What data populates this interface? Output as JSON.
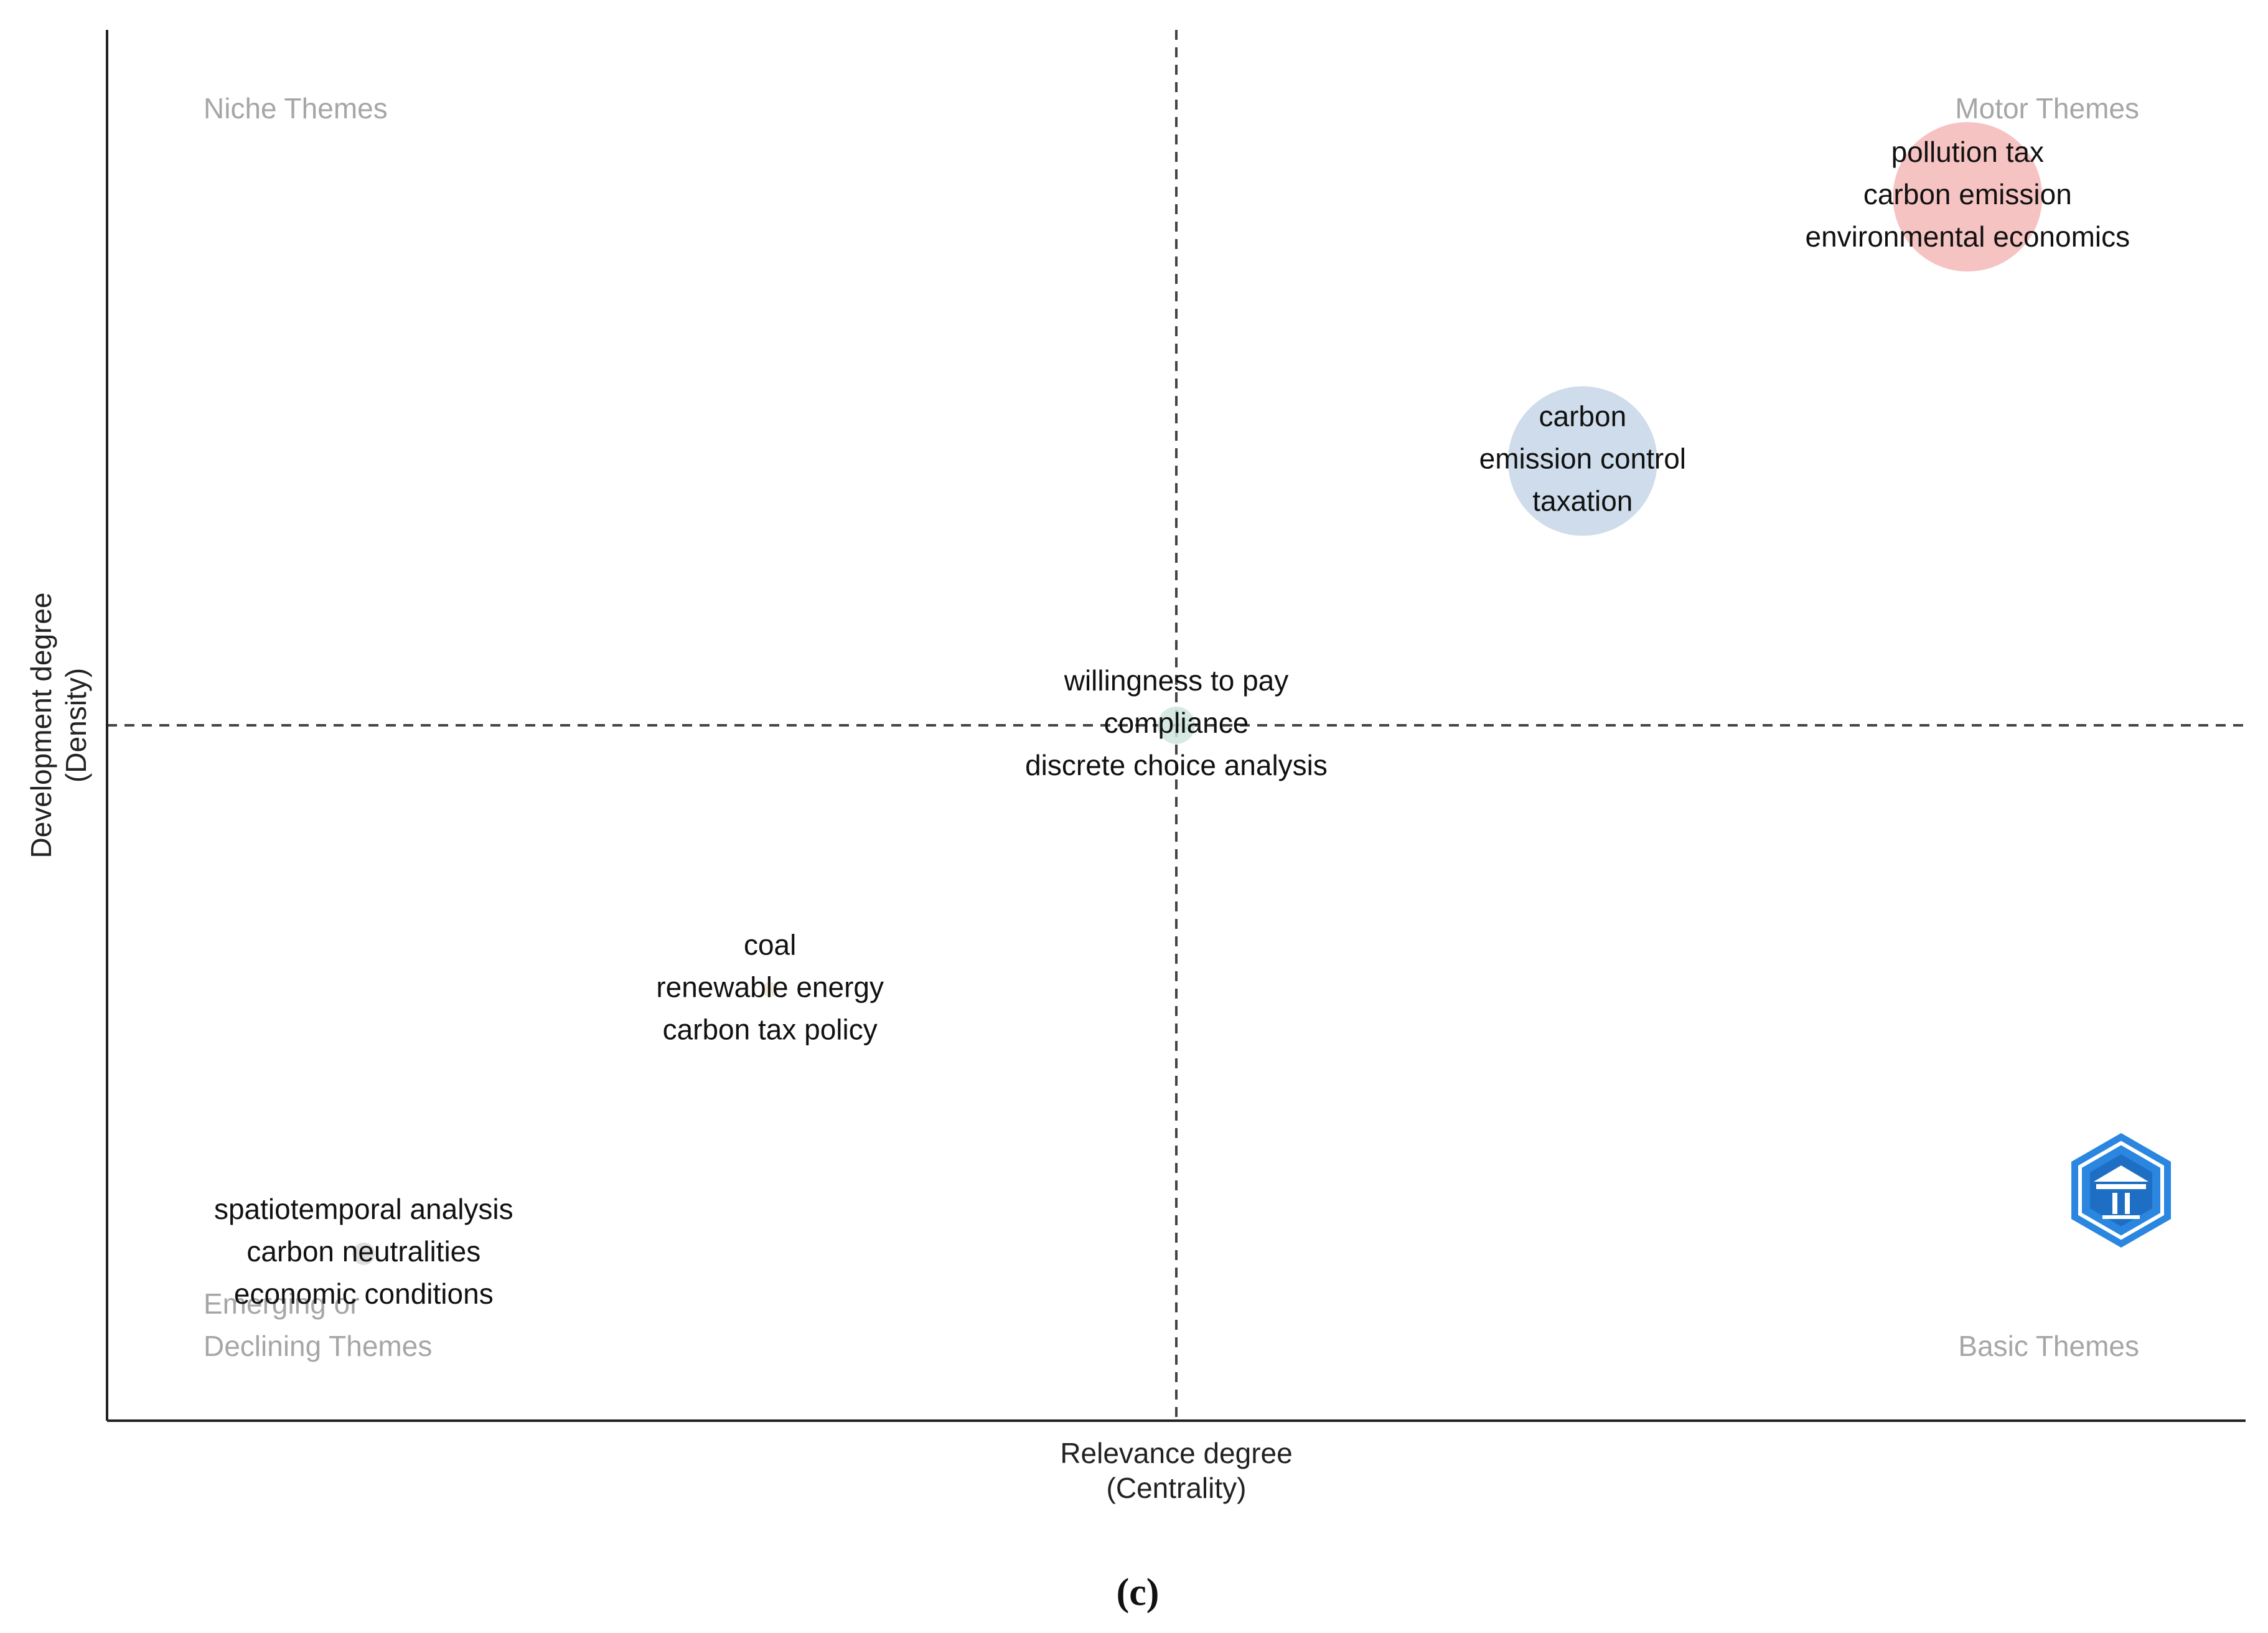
{
  "chart_data": {
    "type": "scatter",
    "subtype": "thematic-map",
    "xlabel": "Relevance degree",
    "xlabel_sub": "(Centrality)",
    "ylabel": "Development degree",
    "ylabel_sub": "(Density)",
    "xlim": [
      0,
      100
    ],
    "ylim": [
      0,
      100
    ],
    "x_divider": 50,
    "y_divider": 50,
    "grid": false,
    "quadrants": [
      {
        "name": "niche",
        "lines": [
          "Niche Themes"
        ],
        "position": "top-left"
      },
      {
        "name": "motor",
        "lines": [
          "Motor Themes"
        ],
        "position": "top-right"
      },
      {
        "name": "emerging",
        "lines": [
          "Emerging or",
          "Declining Themes"
        ],
        "position": "bottom-left"
      },
      {
        "name": "basic",
        "lines": [
          "Basic Themes"
        ],
        "position": "bottom-right"
      }
    ],
    "clusters": [
      {
        "id": "pollution-tax",
        "x": 87,
        "y": 88,
        "size": 1.0,
        "color": "#f4b9b9",
        "labels": [
          "pollution tax",
          "carbon emission",
          "environmental economics"
        ]
      },
      {
        "id": "carbon",
        "x": 69,
        "y": 69,
        "size": 1.0,
        "color": "#c5d6e8",
        "labels": [
          "carbon",
          "emission control",
          "taxation"
        ]
      },
      {
        "id": "willingness",
        "x": 50,
        "y": 50,
        "size": 0.25,
        "color": "#cfe5dd",
        "labels": [
          "willingness to pay",
          "compliance",
          "discrete choice analysis"
        ]
      },
      {
        "id": "coal",
        "x": 31,
        "y": 31,
        "size": 0.1,
        "color": "#f2e8d5",
        "labels": [
          "coal",
          "renewable energy",
          "carbon tax policy"
        ]
      },
      {
        "id": "spatiotemporal",
        "x": 12,
        "y": 12,
        "size": 0.15,
        "color": "#d9d9d9",
        "labels": [
          "spatiotemporal analysis",
          "carbon neutralities",
          "economic conditions"
        ]
      }
    ],
    "logo_icon": "hexagon-logo-icon",
    "caption": "(c)"
  }
}
